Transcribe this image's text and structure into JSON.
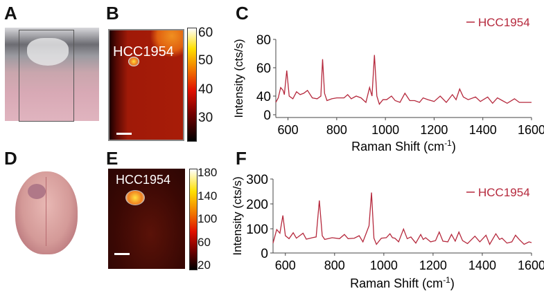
{
  "panels": {
    "a": {
      "label": "A"
    },
    "b": {
      "label": "B",
      "annotation": "HCC1954",
      "colorbar_ticks": [
        "60",
        "50",
        "40",
        "30"
      ]
    },
    "c": {
      "label": "C"
    },
    "d": {
      "label": "D"
    },
    "e": {
      "label": "E",
      "annotation": "HCC1954",
      "colorbar_ticks": [
        "180",
        "140",
        "100",
        "60",
        "20"
      ]
    },
    "f": {
      "label": "F"
    }
  },
  "colors": {
    "series": "#b5283c",
    "map_background": "#8a1208"
  },
  "chart_data": [
    {
      "type": "line",
      "panel": "C",
      "xlabel": "Raman Shift (cm-1)",
      "ylabel": "Intensity (cts/s)",
      "xlim": [
        550,
        1600
      ],
      "ylim": [
        0,
        80
      ],
      "xticks": [
        "600",
        "800",
        "1000",
        "1200",
        "1400",
        "1600"
      ],
      "yticks": [
        "0",
        "40",
        "60",
        "80"
      ],
      "legend": "top-right",
      "series": [
        {
          "name": "HCC1954",
          "x": [
            550,
            560,
            570,
            580,
            585,
            595,
            605,
            620,
            635,
            650,
            665,
            680,
            700,
            720,
            735,
            742,
            750,
            760,
            780,
            800,
            830,
            845,
            860,
            880,
            900,
            920,
            935,
            945,
            955,
            965,
            975,
            990,
            1005,
            1025,
            1040,
            1060,
            1080,
            1100,
            1120,
            1140,
            1155,
            1175,
            1200,
            1225,
            1250,
            1275,
            1290,
            1305,
            1320,
            1340,
            1370,
            1390,
            1420,
            1440,
            1460,
            1480,
            1500,
            1530,
            1550,
            1580,
            1600
          ],
          "y": [
            33,
            38,
            46,
            44,
            41,
            58,
            40,
            37,
            43,
            41,
            42,
            44,
            38,
            37,
            40,
            66,
            42,
            35,
            37,
            38,
            38,
            41,
            37,
            40,
            38,
            33,
            46,
            40,
            69,
            40,
            31,
            36,
            36,
            40,
            35,
            33,
            42,
            35,
            35,
            33,
            38,
            36,
            34,
            40,
            33,
            41,
            36,
            45,
            39,
            36,
            39,
            34,
            39,
            32,
            38,
            35,
            32,
            37,
            33,
            33,
            33
          ]
        }
      ]
    },
    {
      "type": "line",
      "panel": "F",
      "xlabel": "Raman Shift (cm-1)",
      "ylabel": "Intensity (cts/s)",
      "xlim": [
        550,
        1600
      ],
      "ylim": [
        0,
        300
      ],
      "xticks": [
        "600",
        "800",
        "1000",
        "1200",
        "1400",
        "1600"
      ],
      "yticks": [
        "0",
        "100",
        "200",
        "300"
      ],
      "legend": "top-right",
      "series": [
        {
          "name": "HCC1954",
          "x": [
            550,
            565,
            578,
            590,
            600,
            615,
            632,
            645,
            672,
            685,
            710,
            725,
            738,
            750,
            760,
            790,
            820,
            840,
            855,
            880,
            900,
            915,
            940,
            950,
            960,
            970,
            990,
            1010,
            1025,
            1035,
            1045,
            1060,
            1080,
            1095,
            1110,
            1130,
            1150,
            1160,
            1170,
            1190,
            1210,
            1225,
            1240,
            1260,
            1275,
            1290,
            1305,
            1320,
            1340,
            1370,
            1390,
            1415,
            1430,
            1455,
            1470,
            1480,
            1500,
            1520,
            1535,
            1550,
            1570,
            1590,
            1600
          ],
          "y": [
            40,
            95,
            80,
            152,
            70,
            58,
            82,
            60,
            80,
            56,
            62,
            65,
            213,
            70,
            55,
            62,
            58,
            75,
            58,
            60,
            70,
            45,
            110,
            245,
            60,
            35,
            60,
            62,
            78,
            62,
            60,
            45,
            97,
            58,
            65,
            40,
            75,
            55,
            62,
            45,
            50,
            85,
            48,
            45,
            75,
            48,
            85,
            50,
            38,
            68,
            45,
            72,
            35,
            78,
            55,
            60,
            40,
            45,
            72,
            55,
            35,
            45,
            42
          ]
        }
      ]
    }
  ]
}
